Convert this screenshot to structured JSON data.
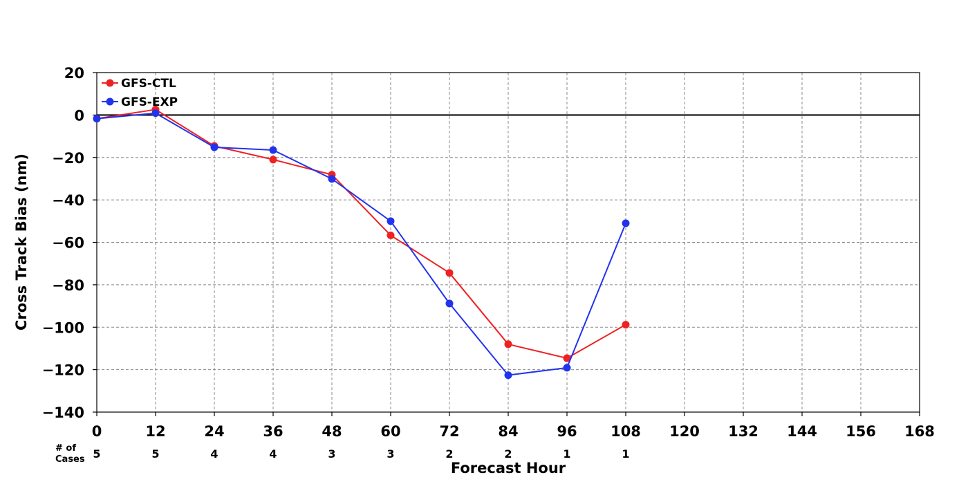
{
  "chart_data": {
    "type": "line",
    "xlabel": "Forecast Hour",
    "ylabel": "Cross Track Bias (nm)",
    "xlim": [
      0,
      168
    ],
    "ylim": [
      -140,
      20
    ],
    "xticks": [
      0,
      12,
      24,
      36,
      48,
      60,
      72,
      84,
      96,
      108,
      120,
      132,
      144,
      156,
      168
    ],
    "yticks": [
      20,
      0,
      -20,
      -40,
      -60,
      -80,
      -100,
      -120,
      -140
    ],
    "xtick_labels": [
      "0",
      "12",
      "24",
      "36",
      "48",
      "60",
      "72",
      "84",
      "96",
      "108",
      "120",
      "132",
      "144",
      "156",
      "168"
    ],
    "ytick_labels": [
      "20",
      "0",
      "−20",
      "−40",
      "−60",
      "−80",
      "−100",
      "−120",
      "−140"
    ],
    "grid": true,
    "legend_position": "top-left",
    "zero_line": true,
    "cases_label_line1": "# of",
    "cases_label_line2": "Cases",
    "cases": [
      {
        "x": 0,
        "n": "5"
      },
      {
        "x": 12,
        "n": "5"
      },
      {
        "x": 24,
        "n": "4"
      },
      {
        "x": 36,
        "n": "4"
      },
      {
        "x": 48,
        "n": "3"
      },
      {
        "x": 60,
        "n": "3"
      },
      {
        "x": 72,
        "n": "2"
      },
      {
        "x": 84,
        "n": "2"
      },
      {
        "x": 96,
        "n": "1"
      },
      {
        "x": 108,
        "n": "1"
      }
    ],
    "series": [
      {
        "name": "GFS-CTL",
        "color": "#ee2222",
        "x": [
          0,
          12,
          24,
          36,
          48,
          60,
          72,
          84,
          96,
          108
        ],
        "values": [
          -1.7,
          2.6,
          -14.6,
          -21.0,
          -28.1,
          -56.7,
          -74.4,
          -108.0,
          -114.6,
          -98.8
        ]
      },
      {
        "name": "GFS-EXP",
        "color": "#2233ee",
        "x": [
          0,
          12,
          24,
          36,
          48,
          60,
          72,
          84,
          96,
          108
        ],
        "values": [
          -1.7,
          0.9,
          -15.2,
          -16.5,
          -30.1,
          -50.0,
          -88.8,
          -122.6,
          -119.1,
          -51.0
        ]
      }
    ]
  }
}
